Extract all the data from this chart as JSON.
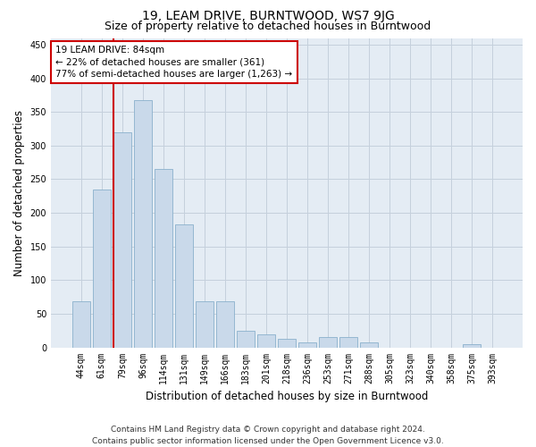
{
  "title": "19, LEAM DRIVE, BURNTWOOD, WS7 9JG",
  "subtitle": "Size of property relative to detached houses in Burntwood",
  "xlabel": "Distribution of detached houses by size in Burntwood",
  "ylabel": "Number of detached properties",
  "categories": [
    "44sqm",
    "61sqm",
    "79sqm",
    "96sqm",
    "114sqm",
    "131sqm",
    "149sqm",
    "166sqm",
    "183sqm",
    "201sqm",
    "218sqm",
    "236sqm",
    "253sqm",
    "271sqm",
    "288sqm",
    "305sqm",
    "323sqm",
    "340sqm",
    "358sqm",
    "375sqm",
    "393sqm"
  ],
  "values": [
    68,
    235,
    320,
    368,
    265,
    183,
    68,
    68,
    25,
    20,
    13,
    8,
    15,
    15,
    8,
    0,
    0,
    0,
    0,
    5,
    0
  ],
  "bar_color": "#c9d9ea",
  "bar_edge_color": "#8ab0cc",
  "marker_bar_index": 2,
  "marker_line_color": "#cc0000",
  "annotation_text": "19 LEAM DRIVE: 84sqm\n← 22% of detached houses are smaller (361)\n77% of semi-detached houses are larger (1,263) →",
  "annotation_box_facecolor": "#ffffff",
  "annotation_box_edgecolor": "#cc0000",
  "ylim": [
    0,
    460
  ],
  "yticks": [
    0,
    50,
    100,
    150,
    200,
    250,
    300,
    350,
    400,
    450
  ],
  "grid_color": "#c5d0dc",
  "background_color": "#e4ecf4",
  "footer": "Contains HM Land Registry data © Crown copyright and database right 2024.\nContains public sector information licensed under the Open Government Licence v3.0.",
  "title_fontsize": 10,
  "subtitle_fontsize": 9,
  "axis_label_fontsize": 8.5,
  "tick_fontsize": 7,
  "annotation_fontsize": 7.5,
  "footer_fontsize": 6.5
}
